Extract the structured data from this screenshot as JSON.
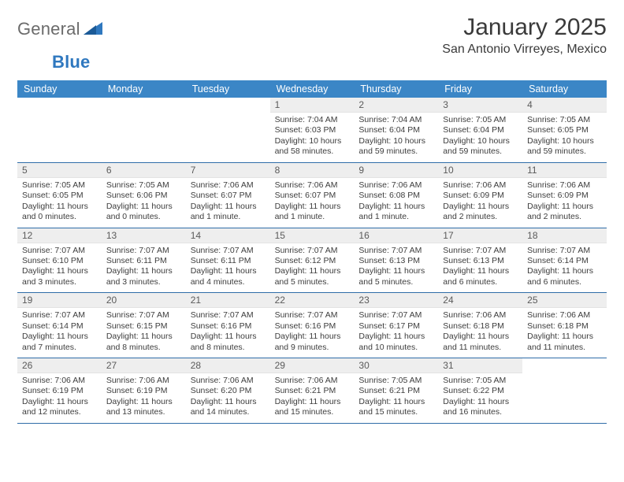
{
  "logo": {
    "word1": "General",
    "word2": "Blue"
  },
  "title": "January 2025",
  "location": "San Antonio Virreyes, Mexico",
  "colors": {
    "header_bg": "#3b86c6",
    "rule": "#2f6da8",
    "daynum_bg": "#eeeeee",
    "logo_gray": "#6b6b6b",
    "logo_blue": "#2f78bf"
  },
  "day_names": [
    "Sunday",
    "Monday",
    "Tuesday",
    "Wednesday",
    "Thursday",
    "Friday",
    "Saturday"
  ],
  "weeks": [
    [
      {
        "n": "",
        "lines": []
      },
      {
        "n": "",
        "lines": []
      },
      {
        "n": "",
        "lines": []
      },
      {
        "n": "1",
        "lines": [
          "Sunrise: 7:04 AM",
          "Sunset: 6:03 PM",
          "Daylight: 10 hours",
          "and 58 minutes."
        ]
      },
      {
        "n": "2",
        "lines": [
          "Sunrise: 7:04 AM",
          "Sunset: 6:04 PM",
          "Daylight: 10 hours",
          "and 59 minutes."
        ]
      },
      {
        "n": "3",
        "lines": [
          "Sunrise: 7:05 AM",
          "Sunset: 6:04 PM",
          "Daylight: 10 hours",
          "and 59 minutes."
        ]
      },
      {
        "n": "4",
        "lines": [
          "Sunrise: 7:05 AM",
          "Sunset: 6:05 PM",
          "Daylight: 10 hours",
          "and 59 minutes."
        ]
      }
    ],
    [
      {
        "n": "5",
        "lines": [
          "Sunrise: 7:05 AM",
          "Sunset: 6:05 PM",
          "Daylight: 11 hours",
          "and 0 minutes."
        ]
      },
      {
        "n": "6",
        "lines": [
          "Sunrise: 7:05 AM",
          "Sunset: 6:06 PM",
          "Daylight: 11 hours",
          "and 0 minutes."
        ]
      },
      {
        "n": "7",
        "lines": [
          "Sunrise: 7:06 AM",
          "Sunset: 6:07 PM",
          "Daylight: 11 hours",
          "and 1 minute."
        ]
      },
      {
        "n": "8",
        "lines": [
          "Sunrise: 7:06 AM",
          "Sunset: 6:07 PM",
          "Daylight: 11 hours",
          "and 1 minute."
        ]
      },
      {
        "n": "9",
        "lines": [
          "Sunrise: 7:06 AM",
          "Sunset: 6:08 PM",
          "Daylight: 11 hours",
          "and 1 minute."
        ]
      },
      {
        "n": "10",
        "lines": [
          "Sunrise: 7:06 AM",
          "Sunset: 6:09 PM",
          "Daylight: 11 hours",
          "and 2 minutes."
        ]
      },
      {
        "n": "11",
        "lines": [
          "Sunrise: 7:06 AM",
          "Sunset: 6:09 PM",
          "Daylight: 11 hours",
          "and 2 minutes."
        ]
      }
    ],
    [
      {
        "n": "12",
        "lines": [
          "Sunrise: 7:07 AM",
          "Sunset: 6:10 PM",
          "Daylight: 11 hours",
          "and 3 minutes."
        ]
      },
      {
        "n": "13",
        "lines": [
          "Sunrise: 7:07 AM",
          "Sunset: 6:11 PM",
          "Daylight: 11 hours",
          "and 3 minutes."
        ]
      },
      {
        "n": "14",
        "lines": [
          "Sunrise: 7:07 AM",
          "Sunset: 6:11 PM",
          "Daylight: 11 hours",
          "and 4 minutes."
        ]
      },
      {
        "n": "15",
        "lines": [
          "Sunrise: 7:07 AM",
          "Sunset: 6:12 PM",
          "Daylight: 11 hours",
          "and 5 minutes."
        ]
      },
      {
        "n": "16",
        "lines": [
          "Sunrise: 7:07 AM",
          "Sunset: 6:13 PM",
          "Daylight: 11 hours",
          "and 5 minutes."
        ]
      },
      {
        "n": "17",
        "lines": [
          "Sunrise: 7:07 AM",
          "Sunset: 6:13 PM",
          "Daylight: 11 hours",
          "and 6 minutes."
        ]
      },
      {
        "n": "18",
        "lines": [
          "Sunrise: 7:07 AM",
          "Sunset: 6:14 PM",
          "Daylight: 11 hours",
          "and 6 minutes."
        ]
      }
    ],
    [
      {
        "n": "19",
        "lines": [
          "Sunrise: 7:07 AM",
          "Sunset: 6:14 PM",
          "Daylight: 11 hours",
          "and 7 minutes."
        ]
      },
      {
        "n": "20",
        "lines": [
          "Sunrise: 7:07 AM",
          "Sunset: 6:15 PM",
          "Daylight: 11 hours",
          "and 8 minutes."
        ]
      },
      {
        "n": "21",
        "lines": [
          "Sunrise: 7:07 AM",
          "Sunset: 6:16 PM",
          "Daylight: 11 hours",
          "and 8 minutes."
        ]
      },
      {
        "n": "22",
        "lines": [
          "Sunrise: 7:07 AM",
          "Sunset: 6:16 PM",
          "Daylight: 11 hours",
          "and 9 minutes."
        ]
      },
      {
        "n": "23",
        "lines": [
          "Sunrise: 7:07 AM",
          "Sunset: 6:17 PM",
          "Daylight: 11 hours",
          "and 10 minutes."
        ]
      },
      {
        "n": "24",
        "lines": [
          "Sunrise: 7:06 AM",
          "Sunset: 6:18 PM",
          "Daylight: 11 hours",
          "and 11 minutes."
        ]
      },
      {
        "n": "25",
        "lines": [
          "Sunrise: 7:06 AM",
          "Sunset: 6:18 PM",
          "Daylight: 11 hours",
          "and 11 minutes."
        ]
      }
    ],
    [
      {
        "n": "26",
        "lines": [
          "Sunrise: 7:06 AM",
          "Sunset: 6:19 PM",
          "Daylight: 11 hours",
          "and 12 minutes."
        ]
      },
      {
        "n": "27",
        "lines": [
          "Sunrise: 7:06 AM",
          "Sunset: 6:19 PM",
          "Daylight: 11 hours",
          "and 13 minutes."
        ]
      },
      {
        "n": "28",
        "lines": [
          "Sunrise: 7:06 AM",
          "Sunset: 6:20 PM",
          "Daylight: 11 hours",
          "and 14 minutes."
        ]
      },
      {
        "n": "29",
        "lines": [
          "Sunrise: 7:06 AM",
          "Sunset: 6:21 PM",
          "Daylight: 11 hours",
          "and 15 minutes."
        ]
      },
      {
        "n": "30",
        "lines": [
          "Sunrise: 7:05 AM",
          "Sunset: 6:21 PM",
          "Daylight: 11 hours",
          "and 15 minutes."
        ]
      },
      {
        "n": "31",
        "lines": [
          "Sunrise: 7:05 AM",
          "Sunset: 6:22 PM",
          "Daylight: 11 hours",
          "and 16 minutes."
        ]
      },
      {
        "n": "",
        "lines": []
      }
    ]
  ]
}
